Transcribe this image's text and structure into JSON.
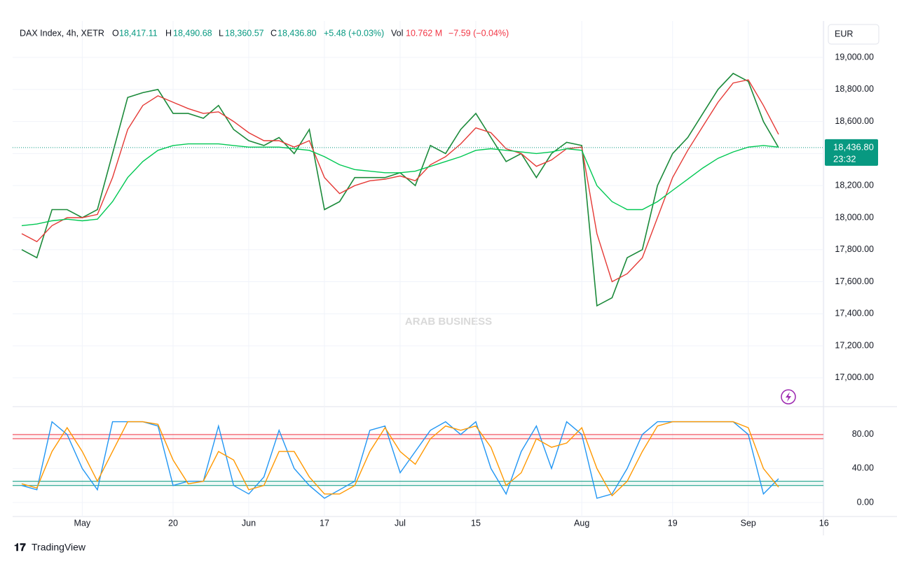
{
  "header": {
    "symbol": "DAX Index, 4h, XETR",
    "o": "O",
    "o_value": "18,417.11",
    "h": "H",
    "h_value": "18,490.68",
    "l": "L",
    "l_value": "18,360.57",
    "c": "C",
    "c_value": "18,436.80",
    "change": "+5.48 (+0.03%)",
    "vol": "Vol",
    "vol_value": "10.762 M",
    "vol_change": "−7.59 (−0.04%)",
    "currency": "EUR",
    "watermark": "ARAB BUSINESS",
    "brand": "TradingView"
  },
  "chart_data": [
    {
      "type": "line",
      "categories": [
        null,
        null,
        null,
        null,
        "May",
        null,
        null,
        null,
        null,
        null,
        "20",
        null,
        null,
        null,
        null,
        "Jun",
        null,
        null,
        null,
        null,
        "17",
        null,
        null,
        null,
        null,
        "Jul",
        null,
        null,
        null,
        null,
        "15",
        null,
        null,
        null,
        null,
        null,
        null,
        "Aug",
        null,
        null,
        null,
        null,
        null,
        "19",
        null,
        null,
        null,
        null,
        "Sep",
        null,
        null,
        null,
        null,
        "16"
      ],
      "series": [
        {
          "color": "#1b8a3a",
          "values": [
            17800,
            17750,
            18050,
            18050,
            18000,
            18050,
            18400,
            18750,
            18780,
            18800,
            18650,
            18650,
            18620,
            18700,
            18550,
            18480,
            18450,
            18500,
            18400,
            18550,
            18050,
            18100,
            18250,
            18250,
            18250,
            18280,
            18200,
            18450,
            18400,
            18550,
            18650,
            18500,
            18350,
            18400,
            18250,
            18400,
            18470,
            18450,
            17450,
            17500,
            17750,
            17800,
            18200,
            18400,
            18500,
            18650,
            18800,
            18900,
            18850,
            18600,
            18436.8,
            null,
            null,
            null
          ]
        },
        {
          "color": "#e53935",
          "values": [
            17900,
            17850,
            17950,
            18000,
            18000,
            18020,
            18250,
            18550,
            18700,
            18760,
            18720,
            18680,
            18650,
            18660,
            18600,
            18530,
            18480,
            18480,
            18440,
            18480,
            18250,
            18150,
            18200,
            18230,
            18240,
            18260,
            18230,
            18330,
            18380,
            18460,
            18560,
            18530,
            18430,
            18400,
            18320,
            18360,
            18430,
            18440,
            17900,
            17600,
            17650,
            17750,
            18000,
            18250,
            18420,
            18570,
            18720,
            18840,
            18860,
            18700,
            18520,
            null,
            null,
            null
          ]
        },
        {
          "color": "#00c853",
          "values": [
            17950,
            17960,
            17980,
            17990,
            17980,
            17990,
            18100,
            18250,
            18350,
            18420,
            18450,
            18460,
            18460,
            18460,
            18450,
            18440,
            18440,
            18440,
            18430,
            18420,
            18380,
            18330,
            18300,
            18290,
            18280,
            18280,
            18290,
            18320,
            18350,
            18380,
            18420,
            18430,
            18420,
            18410,
            18400,
            18410,
            18430,
            18420,
            18200,
            18100,
            18050,
            18050,
            18100,
            18170,
            18240,
            18310,
            18370,
            18410,
            18440,
            18450,
            18440,
            null,
            null,
            null
          ]
        }
      ],
      "ylim": [
        16825,
        19227
      ],
      "yticks": [
        {
          "value": 17000,
          "label": "17,000.00"
        },
        {
          "value": 17200,
          "label": "17,200.00"
        },
        {
          "value": 17400,
          "label": "17,400.00"
        },
        {
          "value": 17600,
          "label": "17,600.00"
        },
        {
          "value": 17800,
          "label": "17,800.00"
        },
        {
          "value": 18000,
          "label": "18,000.00"
        },
        {
          "value": 18200,
          "label": "18,200.00"
        },
        {
          "value": 18400,
          "label": "18,400.00"
        },
        {
          "value": 18600,
          "label": "18,600.00"
        },
        {
          "value": 18800,
          "label": "18,800.00"
        },
        {
          "value": 19000,
          "label": "19,000.00"
        }
      ],
      "grid": true,
      "last_price_label": "18,436.80",
      "countdown": "23:32"
    },
    {
      "type": "line",
      "series": [
        {
          "color": "#2196f3",
          "values": [
            20,
            15,
            95,
            80,
            40,
            15,
            95,
            95,
            95,
            90,
            20,
            25,
            25,
            90,
            20,
            10,
            30,
            85,
            40,
            20,
            5,
            15,
            25,
            85,
            90,
            35,
            60,
            85,
            95,
            80,
            95,
            40,
            10,
            60,
            90,
            40,
            95,
            80,
            5,
            10,
            40,
            80,
            95,
            95,
            95,
            95,
            95,
            95,
            80,
            10,
            28,
            null,
            null,
            null
          ]
        },
        {
          "color": "#ff9800",
          "values": [
            22,
            17,
            60,
            88,
            60,
            25,
            60,
            95,
            95,
            92,
            50,
            22,
            25,
            60,
            50,
            15,
            20,
            60,
            60,
            30,
            10,
            10,
            20,
            60,
            88,
            60,
            45,
            75,
            90,
            85,
            90,
            65,
            20,
            35,
            75,
            65,
            70,
            88,
            40,
            8,
            25,
            60,
            90,
            95,
            95,
            95,
            95,
            95,
            88,
            40,
            18,
            null,
            null,
            null
          ]
        }
      ],
      "ylim": [
        -16.5,
        112
      ],
      "yticks": [
        {
          "value": 0,
          "label": "0.00"
        },
        {
          "value": 40,
          "label": "40.00"
        },
        {
          "value": 80,
          "label": "80.00"
        }
      ],
      "bands": [
        {
          "values": [
            75,
            80
          ],
          "color": "#f23645"
        },
        {
          "values": [
            20,
            25
          ],
          "color": "#089981"
        }
      ],
      "grid": true
    }
  ]
}
